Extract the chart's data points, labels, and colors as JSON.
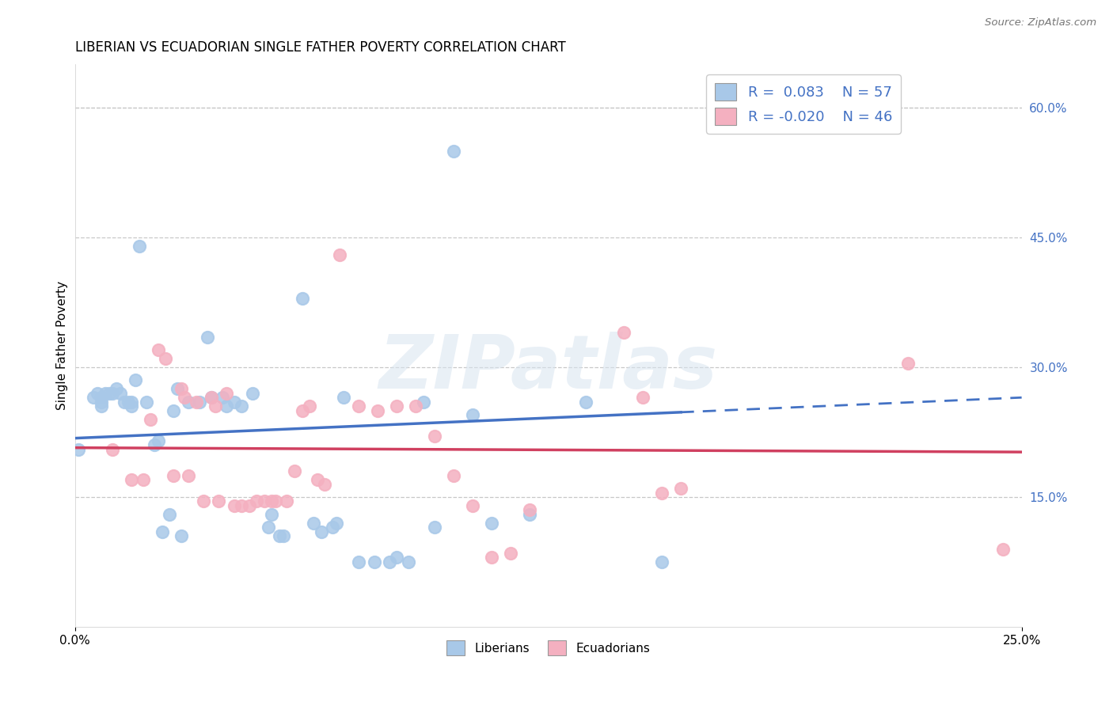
{
  "title": "LIBERIAN VS ECUADORIAN SINGLE FATHER POVERTY CORRELATION CHART",
  "source": "Source: ZipAtlas.com",
  "ylabel": "Single Father Poverty",
  "watermark": "ZIPatlas",
  "legend_liberian_r": "R =  0.083",
  "legend_liberian_n": "N = 57",
  "legend_ecuadorian_r": "R = -0.020",
  "legend_ecuadorian_n": "N = 46",
  "liberian_color": "#a8c8e8",
  "ecuadorian_color": "#f4b0c0",
  "liberian_line_color": "#4472c4",
  "ecuadorian_line_color": "#d04060",
  "liberian_scatter": [
    [
      0.001,
      0.205
    ],
    [
      0.005,
      0.265
    ],
    [
      0.006,
      0.27
    ],
    [
      0.007,
      0.265
    ],
    [
      0.007,
      0.26
    ],
    [
      0.007,
      0.255
    ],
    [
      0.008,
      0.27
    ],
    [
      0.009,
      0.27
    ],
    [
      0.01,
      0.27
    ],
    [
      0.011,
      0.275
    ],
    [
      0.012,
      0.27
    ],
    [
      0.013,
      0.26
    ],
    [
      0.014,
      0.26
    ],
    [
      0.015,
      0.255
    ],
    [
      0.015,
      0.26
    ],
    [
      0.016,
      0.285
    ],
    [
      0.017,
      0.44
    ],
    [
      0.019,
      0.26
    ],
    [
      0.021,
      0.21
    ],
    [
      0.022,
      0.215
    ],
    [
      0.023,
      0.11
    ],
    [
      0.025,
      0.13
    ],
    [
      0.026,
      0.25
    ],
    [
      0.027,
      0.275
    ],
    [
      0.028,
      0.105
    ],
    [
      0.03,
      0.26
    ],
    [
      0.033,
      0.26
    ],
    [
      0.035,
      0.335
    ],
    [
      0.036,
      0.265
    ],
    [
      0.039,
      0.265
    ],
    [
      0.04,
      0.255
    ],
    [
      0.042,
      0.26
    ],
    [
      0.044,
      0.255
    ],
    [
      0.047,
      0.27
    ],
    [
      0.051,
      0.115
    ],
    [
      0.052,
      0.13
    ],
    [
      0.054,
      0.105
    ],
    [
      0.055,
      0.105
    ],
    [
      0.06,
      0.38
    ],
    [
      0.063,
      0.12
    ],
    [
      0.065,
      0.11
    ],
    [
      0.068,
      0.115
    ],
    [
      0.069,
      0.12
    ],
    [
      0.071,
      0.265
    ],
    [
      0.075,
      0.075
    ],
    [
      0.079,
      0.075
    ],
    [
      0.083,
      0.075
    ],
    [
      0.085,
      0.08
    ],
    [
      0.088,
      0.075
    ],
    [
      0.092,
      0.26
    ],
    [
      0.095,
      0.115
    ],
    [
      0.1,
      0.55
    ],
    [
      0.105,
      0.245
    ],
    [
      0.11,
      0.12
    ],
    [
      0.12,
      0.13
    ],
    [
      0.135,
      0.26
    ],
    [
      0.155,
      0.075
    ]
  ],
  "ecuadorian_scatter": [
    [
      0.01,
      0.205
    ],
    [
      0.015,
      0.17
    ],
    [
      0.018,
      0.17
    ],
    [
      0.02,
      0.24
    ],
    [
      0.022,
      0.32
    ],
    [
      0.024,
      0.31
    ],
    [
      0.026,
      0.175
    ],
    [
      0.028,
      0.275
    ],
    [
      0.029,
      0.265
    ],
    [
      0.03,
      0.175
    ],
    [
      0.032,
      0.26
    ],
    [
      0.034,
      0.145
    ],
    [
      0.036,
      0.265
    ],
    [
      0.037,
      0.255
    ],
    [
      0.038,
      0.145
    ],
    [
      0.04,
      0.27
    ],
    [
      0.042,
      0.14
    ],
    [
      0.044,
      0.14
    ],
    [
      0.046,
      0.14
    ],
    [
      0.048,
      0.145
    ],
    [
      0.05,
      0.145
    ],
    [
      0.052,
      0.145
    ],
    [
      0.053,
      0.145
    ],
    [
      0.056,
      0.145
    ],
    [
      0.058,
      0.18
    ],
    [
      0.06,
      0.25
    ],
    [
      0.062,
      0.255
    ],
    [
      0.064,
      0.17
    ],
    [
      0.066,
      0.165
    ],
    [
      0.07,
      0.43
    ],
    [
      0.075,
      0.255
    ],
    [
      0.08,
      0.25
    ],
    [
      0.085,
      0.255
    ],
    [
      0.09,
      0.255
    ],
    [
      0.095,
      0.22
    ],
    [
      0.1,
      0.175
    ],
    [
      0.105,
      0.14
    ],
    [
      0.11,
      0.08
    ],
    [
      0.115,
      0.085
    ],
    [
      0.12,
      0.135
    ],
    [
      0.145,
      0.34
    ],
    [
      0.15,
      0.265
    ],
    [
      0.155,
      0.155
    ],
    [
      0.16,
      0.16
    ],
    [
      0.22,
      0.305
    ],
    [
      0.245,
      0.09
    ]
  ],
  "liberian_solid_line": [
    [
      0.0,
      0.218
    ],
    [
      0.16,
      0.248
    ]
  ],
  "liberian_dashed_line": [
    [
      0.16,
      0.248
    ],
    [
      0.25,
      0.265
    ]
  ],
  "ecuadorian_solid_line": [
    [
      0.0,
      0.207
    ],
    [
      0.25,
      0.202
    ]
  ],
  "background_color": "#ffffff",
  "grid_color": "#c8c8c8",
  "xlim": [
    0.0,
    0.25
  ],
  "ylim": [
    0.0,
    0.65
  ],
  "right_ytick_vals": [
    0.15,
    0.3,
    0.45,
    0.6
  ],
  "right_ytick_labels": [
    "15.0%",
    "30.0%",
    "45.0%",
    "60.0%"
  ]
}
